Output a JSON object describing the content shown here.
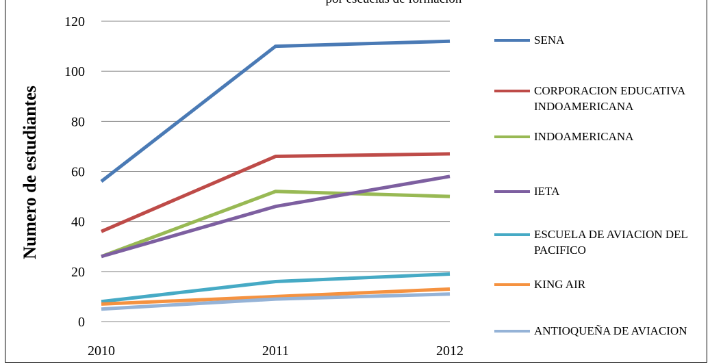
{
  "chart_data": {
    "type": "line",
    "title": "por escuelas de formación",
    "xlabel": "",
    "ylabel": "Numero de estudiantes",
    "categories": [
      "2010",
      "2011",
      "2012"
    ],
    "ylim": [
      0,
      120
    ],
    "yticks": [
      "0",
      "20",
      "40",
      "60",
      "80",
      "100",
      "120"
    ],
    "grid": true,
    "legend_position": "right",
    "series": [
      {
        "name": "SENA",
        "color": "#4a7ab5",
        "values": [
          56,
          110,
          112
        ]
      },
      {
        "name": "CORPORACION EDUCATIVA INDOAMERICANA",
        "color": "#be4b48",
        "values": [
          36,
          66,
          67
        ]
      },
      {
        "name": "INDOAMERICANA",
        "color": "#98b954",
        "values": [
          26,
          52,
          50
        ]
      },
      {
        "name": "IETA",
        "color": "#7d5fa0",
        "values": [
          26,
          46,
          58
        ]
      },
      {
        "name": "ESCUELA DE AVIACION DEL PACIFICO",
        "color": "#46aac5",
        "values": [
          8,
          16,
          19
        ]
      },
      {
        "name": "KING AIR",
        "color": "#f59240",
        "values": [
          7,
          10,
          13
        ]
      },
      {
        "name": "ANTIOQUEÑA DE AVIACION",
        "color": "#95b3d7",
        "values": [
          5,
          9,
          11
        ]
      }
    ]
  }
}
